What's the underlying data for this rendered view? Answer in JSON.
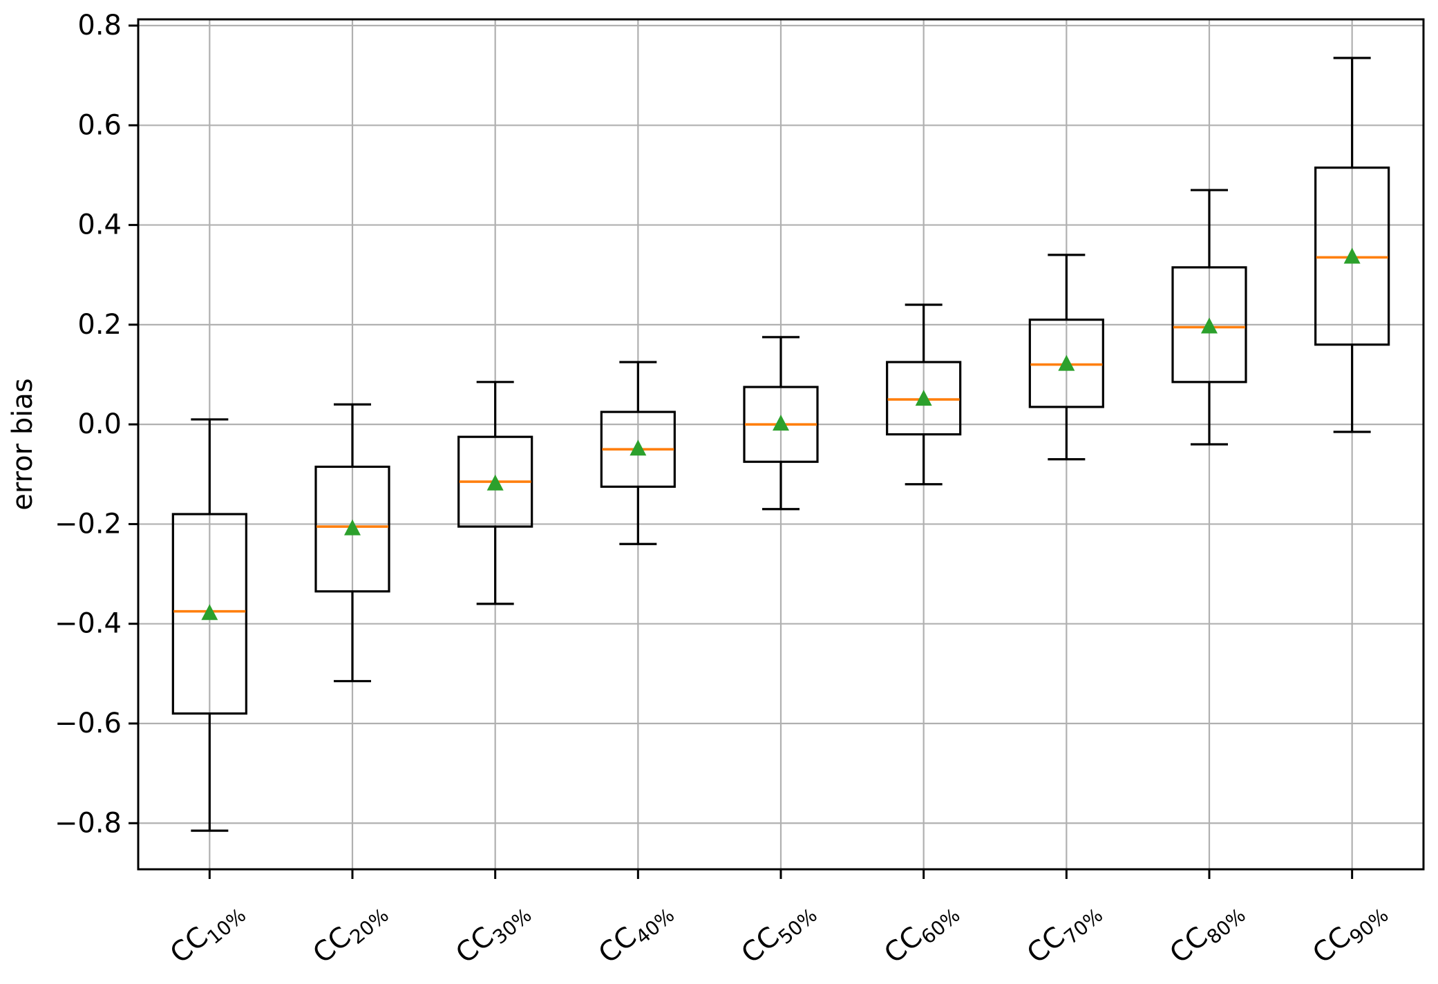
{
  "figure": {
    "title": "",
    "ylabel": "error bias"
  },
  "chart_data": {
    "type": "boxplot",
    "title": "",
    "xlabel": "",
    "ylabel": "error bias",
    "ylim": [
      -0.8925,
      0.8125
    ],
    "yticks": [
      0.8,
      0.6,
      0.4,
      0.2,
      0.0,
      -0.2,
      -0.4,
      -0.6,
      -0.8
    ],
    "ytick_labels": [
      "0.8",
      "0.6",
      "0.4",
      "0.2",
      "0.0",
      "−0.2",
      "−0.4",
      "−0.6",
      "−0.8"
    ],
    "grid": true,
    "legend_position": "none",
    "colors": {
      "box": "#000000",
      "whisker": "#000000",
      "median": "#ff7f0e",
      "mean_marker": "#2ca02c",
      "grid": "#b0b0b0",
      "spine": "#000000",
      "background": "#ffffff"
    },
    "categories": [
      {
        "label": "CC10%",
        "main": "CC",
        "sub": "10%"
      },
      {
        "label": "CC20%",
        "main": "CC",
        "sub": "20%"
      },
      {
        "label": "CC30%",
        "main": "CC",
        "sub": "30%"
      },
      {
        "label": "CC40%",
        "main": "CC",
        "sub": "40%"
      },
      {
        "label": "CC50%",
        "main": "CC",
        "sub": "50%"
      },
      {
        "label": "CC60%",
        "main": "CC",
        "sub": "60%"
      },
      {
        "label": "CC70%",
        "main": "CC",
        "sub": "70%"
      },
      {
        "label": "CC80%",
        "main": "CC",
        "sub": "80%"
      },
      {
        "label": "CC90%",
        "main": "CC",
        "sub": "90%"
      }
    ],
    "series": [
      {
        "category": "CC10%",
        "whislo": -0.815,
        "q1": -0.58,
        "med": -0.375,
        "mean": -0.38,
        "q3": -0.18,
        "whishi": 0.01
      },
      {
        "category": "CC20%",
        "whislo": -0.515,
        "q1": -0.335,
        "med": -0.205,
        "mean": -0.21,
        "q3": -0.085,
        "whishi": 0.04
      },
      {
        "category": "CC30%",
        "whislo": -0.36,
        "q1": -0.205,
        "med": -0.115,
        "mean": -0.12,
        "q3": -0.025,
        "whishi": 0.085
      },
      {
        "category": "CC40%",
        "whislo": -0.24,
        "q1": -0.125,
        "med": -0.05,
        "mean": -0.05,
        "q3": 0.025,
        "whishi": 0.125
      },
      {
        "category": "CC50%",
        "whislo": -0.17,
        "q1": -0.075,
        "med": 0.0,
        "mean": 0.0,
        "q3": 0.075,
        "whishi": 0.175
      },
      {
        "category": "CC60%",
        "whislo": -0.12,
        "q1": -0.02,
        "med": 0.05,
        "mean": 0.05,
        "q3": 0.125,
        "whishi": 0.24
      },
      {
        "category": "CC70%",
        "whislo": -0.07,
        "q1": 0.035,
        "med": 0.12,
        "mean": 0.12,
        "q3": 0.21,
        "whishi": 0.34
      },
      {
        "category": "CC80%",
        "whislo": -0.04,
        "q1": 0.085,
        "med": 0.195,
        "mean": 0.195,
        "q3": 0.315,
        "whishi": 0.47
      },
      {
        "category": "CC90%",
        "whislo": -0.015,
        "q1": 0.16,
        "med": 0.335,
        "mean": 0.335,
        "q3": 0.515,
        "whishi": 0.735
      }
    ]
  }
}
